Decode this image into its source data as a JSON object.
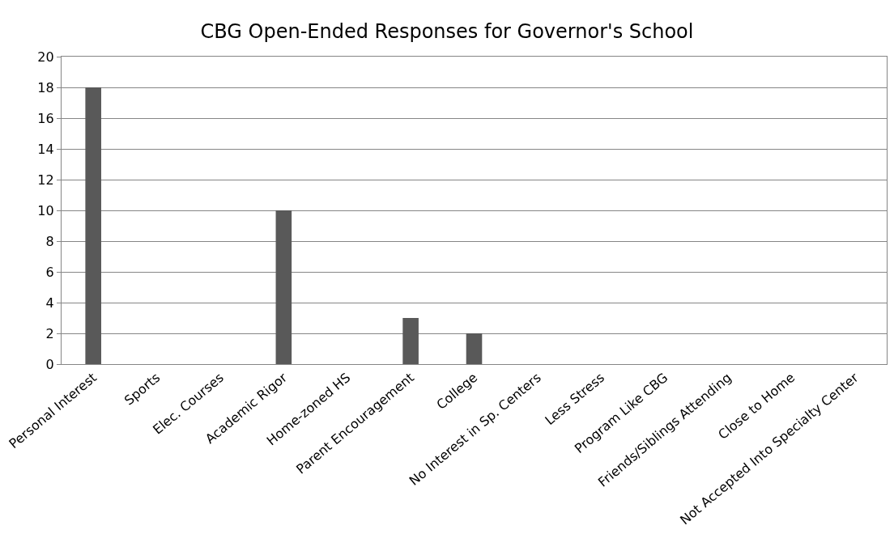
{
  "chart_data": {
    "type": "bar",
    "title": "CBG Open-Ended Responses for Governor's School",
    "categories": [
      "Personal Interest",
      "Sports",
      "Elec. Courses",
      "Academic Rigor",
      "Home-zoned HS",
      "Parent Encouragement",
      "College",
      "No Interest in Sp. Centers",
      "Less Stress",
      "Program Like CBG",
      "Friends/Siblings Attending",
      "Close to Home",
      "Not Accepted Into Specialty Center"
    ],
    "values": [
      18,
      0,
      0,
      10,
      0,
      3,
      2,
      0,
      0,
      0,
      0,
      0,
      0
    ],
    "color": "#595959",
    "ylim": [
      0,
      20
    ],
    "yticks": [
      0,
      2,
      4,
      6,
      8,
      10,
      12,
      14,
      16,
      18,
      20
    ],
    "grid": "y"
  }
}
